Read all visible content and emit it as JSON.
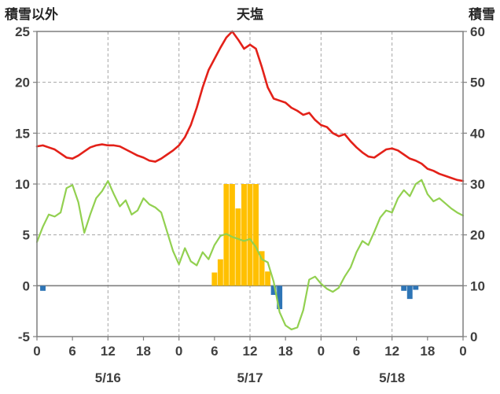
{
  "header": {
    "left_axis_title": "積雪以外",
    "chart_title": "天塩",
    "right_axis_title": "積雪"
  },
  "chart_data": {
    "type": "combo",
    "title": "天塩",
    "x_unit": "hour",
    "x_hours_span": 72,
    "x_tick_interval": 6,
    "x_tick_labels": [
      "0",
      "6",
      "12",
      "18",
      "0",
      "6",
      "12",
      "18",
      "0",
      "6",
      "12",
      "18",
      "0"
    ],
    "date_labels": [
      {
        "label": "5/16",
        "hour": 12
      },
      {
        "label": "5/17",
        "hour": 36
      },
      {
        "label": "5/18",
        "hour": 60
      }
    ],
    "left_axis": {
      "title": "積雪以外",
      "min": -5,
      "max": 25,
      "ticks": [
        25,
        20,
        15,
        10,
        5,
        0,
        -5
      ]
    },
    "right_axis": {
      "title": "積雪",
      "min": 0,
      "max": 60,
      "ticks": [
        60,
        50,
        40,
        30,
        20,
        10,
        0
      ]
    },
    "grid": {
      "vertical_interval_hours": 12,
      "horizontal_dashed": true
    },
    "series": [
      {
        "name": "yellow-bars",
        "type": "bar",
        "axis": "left",
        "color": "#ffc000",
        "bars": [
          {
            "hour": 30,
            "value": 1.3
          },
          {
            "hour": 31,
            "value": 2.6
          },
          {
            "hour": 32,
            "value": 10
          },
          {
            "hour": 33,
            "value": 10
          },
          {
            "hour": 34,
            "value": 7.6
          },
          {
            "hour": 35,
            "value": 10
          },
          {
            "hour": 36,
            "value": 10
          },
          {
            "hour": 37,
            "value": 10
          },
          {
            "hour": 38,
            "value": 3.4
          },
          {
            "hour": 39,
            "value": 1.4
          }
        ]
      },
      {
        "name": "blue-bars",
        "type": "bar",
        "axis": "left",
        "color": "#2e75b6",
        "bars": [
          {
            "hour": 1,
            "value": -0.5
          },
          {
            "hour": 40,
            "value": -0.9
          },
          {
            "hour": 41,
            "value": -2.3
          },
          {
            "hour": 62,
            "value": -0.5
          },
          {
            "hour": 63,
            "value": -1.3
          },
          {
            "hour": 64,
            "value": -0.4
          }
        ]
      },
      {
        "name": "green-line",
        "type": "line",
        "axis": "left",
        "color": "#92d050",
        "width": 2.2,
        "values": [
          4.3,
          5.8,
          7.0,
          6.8,
          7.2,
          9.6,
          9.9,
          8.2,
          5.2,
          7.0,
          8.6,
          9.3,
          10.3,
          9.0,
          7.8,
          8.4,
          7.0,
          7.4,
          8.6,
          8.0,
          7.7,
          7.2,
          5.3,
          3.4,
          2.1,
          3.7,
          2.4,
          2.0,
          3.3,
          2.6,
          4.0,
          4.9,
          5.1,
          4.8,
          4.6,
          4.4,
          4.6,
          3.8,
          2.6,
          2.3,
          0.4,
          -2.6,
          -3.9,
          -4.3,
          -4.1,
          -2.4,
          0.6,
          0.9,
          0.2,
          -0.3,
          -0.6,
          -0.2,
          0.9,
          1.8,
          3.3,
          4.4,
          4.0,
          5.3,
          6.7,
          7.4,
          7.2,
          8.6,
          9.4,
          8.8,
          10.0,
          10.4,
          9.0,
          8.3,
          8.6,
          8.1,
          7.6,
          7.2,
          6.9
        ]
      },
      {
        "name": "red-line",
        "type": "line",
        "axis": "left",
        "color": "#e32119",
        "width": 2.6,
        "values": [
          13.7,
          13.8,
          13.6,
          13.4,
          13.0,
          12.6,
          12.5,
          12.8,
          13.2,
          13.6,
          13.8,
          13.9,
          13.8,
          13.8,
          13.7,
          13.4,
          13.1,
          12.8,
          12.6,
          12.3,
          12.2,
          12.5,
          12.9,
          13.3,
          13.8,
          14.6,
          15.8,
          17.5,
          19.5,
          21.2,
          22.3,
          23.4,
          24.4,
          25.0,
          24.2,
          23.3,
          23.7,
          23.3,
          21.5,
          19.5,
          18.4,
          18.2,
          18.0,
          17.5,
          17.2,
          16.8,
          17.0,
          16.3,
          15.8,
          15.6,
          15.0,
          14.7,
          14.9,
          14.2,
          13.6,
          13.1,
          12.7,
          12.6,
          13.0,
          13.4,
          13.5,
          13.3,
          12.9,
          12.5,
          12.3,
          12.0,
          11.5,
          11.3,
          11.0,
          10.8,
          10.6,
          10.4,
          10.3
        ]
      }
    ],
    "colors": {
      "grid": "#a6a6a6",
      "frame": "#7f7f7f",
      "zero_line": "#7f7f7f",
      "tick_text": "#404040",
      "title_text": "#262626"
    }
  }
}
